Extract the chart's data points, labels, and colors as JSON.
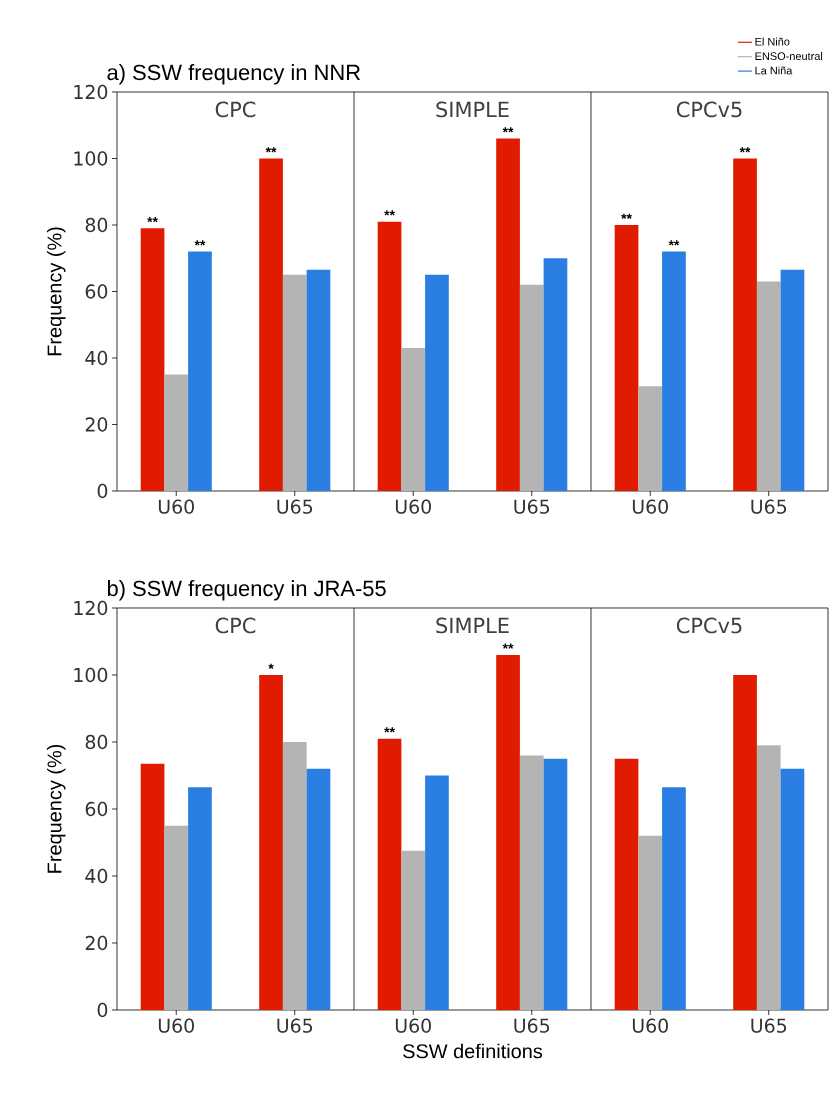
{
  "chart_data": [
    {
      "type": "bar",
      "title": "a) SSW frequency in NNR",
      "ylabel": "Frequency (%)",
      "categories": [
        "U60",
        "U65",
        "U60",
        "U65",
        "U60",
        "U65"
      ],
      "series": [
        {
          "name": "El Niño",
          "color": "#e01b00",
          "values": [
            79,
            100,
            81,
            106,
            80,
            100
          ],
          "value_labels": [
            "**",
            "**",
            "**",
            "**",
            "**",
            "**"
          ]
        },
        {
          "name": "ENSO-neutral",
          "color": "#b4b4b4",
          "values": [
            35,
            65,
            43,
            62,
            31.5,
            63
          ]
        },
        {
          "name": "La Niña",
          "color": "#2a7de1",
          "values": [
            72,
            66.5,
            65,
            70,
            72,
            66.5
          ],
          "value_labels": [
            "**",
            null,
            null,
            null,
            "**",
            null
          ]
        }
      ],
      "ylim": [
        0,
        120
      ],
      "yticks": [
        0,
        20,
        40,
        60,
        80,
        100,
        120
      ],
      "legend": "top right",
      "annotations": [
        "CPC",
        "SIMPLE",
        "CPCv5"
      ]
    },
    {
      "type": "bar",
      "title": "b) SSW frequency in JRA-55",
      "ylabel": "Frequency (%)",
      "xlabel": "SSW definitions",
      "categories": [
        "U60",
        "U65",
        "U60",
        "U65",
        "U60",
        "U65"
      ],
      "series": [
        {
          "color": "#e01b00",
          "values": [
            73.5,
            100,
            81,
            106,
            75,
            100
          ],
          "value_labels": [
            null,
            "*",
            "**",
            "**",
            null,
            null
          ]
        },
        {
          "color": "#b4b4b4",
          "values": [
            55,
            80,
            47.5,
            76,
            52,
            79
          ]
        },
        {
          "color": "#2a7de1",
          "values": [
            66.5,
            72,
            70,
            75,
            66.5,
            72
          ]
        }
      ],
      "ylim": [
        0,
        120
      ],
      "yticks": [
        0,
        20,
        40,
        60,
        80,
        100,
        120
      ],
      "annotations": [
        "CPC",
        "SIMPLE",
        "CPCv5"
      ]
    }
  ]
}
